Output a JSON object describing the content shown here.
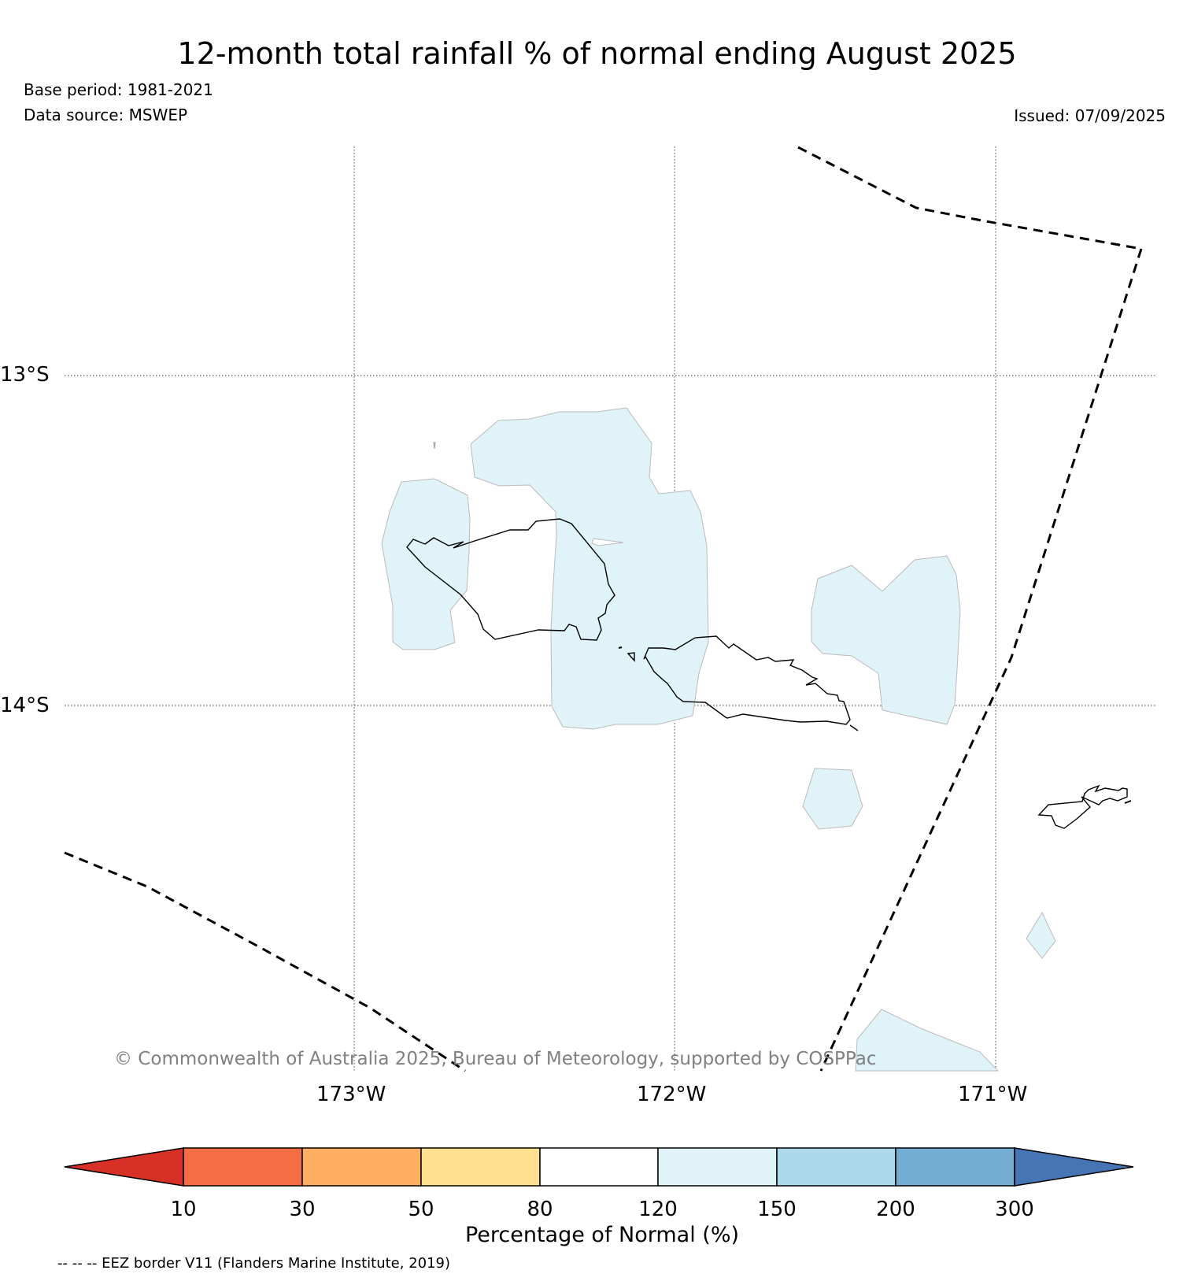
{
  "title": "12-month total rainfall % of normal ending August 2025",
  "base_period": "Base period: 1981-2021",
  "data_source": "Data source: MSWEP",
  "issued": "Issued: 07/09/2025",
  "copyright": "© Commonwealth of Australia 2025, Bureau of Meteorology, supported by COSPPac",
  "eez_note": "-- -- -- EEZ border V11 (Flanders Marine Institute, 2019)",
  "map": {
    "lon_range": [
      -173.9,
      -170.5
    ],
    "lat_range": [
      -12.3,
      -15.1
    ],
    "lon_ticks": [
      {
        "value": -173,
        "label": "173°W"
      },
      {
        "value": -172,
        "label": "172°W"
      },
      {
        "value": -171,
        "label": "171°W"
      }
    ],
    "lat_ticks": [
      {
        "value": -13,
        "label": "13°S"
      },
      {
        "value": -14,
        "label": "14°S"
      }
    ],
    "anomaly_category": "120-150",
    "anomaly_color": "#e0f3f8",
    "coast_color": "#000000"
  },
  "colorbar": {
    "label": "Percentage of Normal (%)",
    "ticks": [
      "10",
      "30",
      "50",
      "80",
      "120",
      "150",
      "200",
      "300"
    ],
    "colors": [
      "#d73027",
      "#f46d43",
      "#fdae61",
      "#fee090",
      "#ffffff",
      "#e0f3f8",
      "#abd9e9",
      "#74add1",
      "#4575b4"
    ]
  }
}
